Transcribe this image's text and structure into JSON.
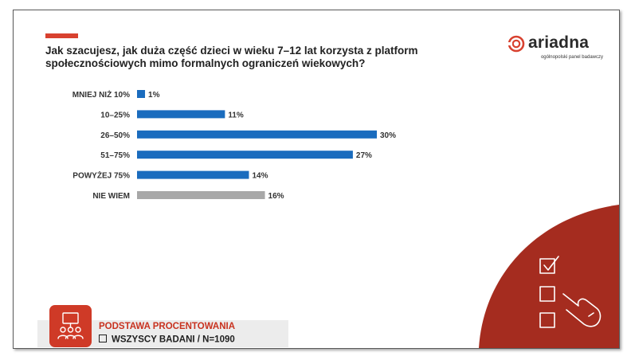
{
  "title": "Jak szacujesz, jak duża część dzieci w wieku 7–12 lat korzysta z platform społecznościowych mimo formalnych ograniczeń wiekowych?",
  "logo": {
    "word": "ariadna",
    "subtitle": "ogólnopolski panel badawczy"
  },
  "colors": {
    "accent": "#d8412f",
    "bar_blue": "#1a6cbe",
    "bar_gray": "#a8a8a8",
    "corner_red": "#a52c1f"
  },
  "chart_data": {
    "type": "bar",
    "orientation": "horizontal",
    "categories": [
      "MNIEJ NIŻ 10%",
      "10–25%",
      "26–50%",
      "51–75%",
      "POWYŻEJ 75%",
      "NIE WIEM"
    ],
    "values": [
      1,
      11,
      30,
      27,
      14,
      16
    ],
    "value_labels": [
      "1%",
      "11%",
      "30%",
      "27%",
      "14%",
      "16%"
    ],
    "bar_colors": [
      "#1a6cbe",
      "#1a6cbe",
      "#1a6cbe",
      "#1a6cbe",
      "#1a6cbe",
      "#a8a8a8"
    ],
    "unit": "%",
    "xlim": [
      0,
      30
    ],
    "grid": false,
    "legend": "none"
  },
  "base": {
    "title": "PODSTAWA PROCENTOWANIA",
    "subtitle": "WSZYSCY BADANI / N=1090"
  },
  "icons": {
    "logo": "ariadna-logo-icon",
    "base": "people-presentation-icon",
    "corner": "checklist-hand-icon"
  }
}
